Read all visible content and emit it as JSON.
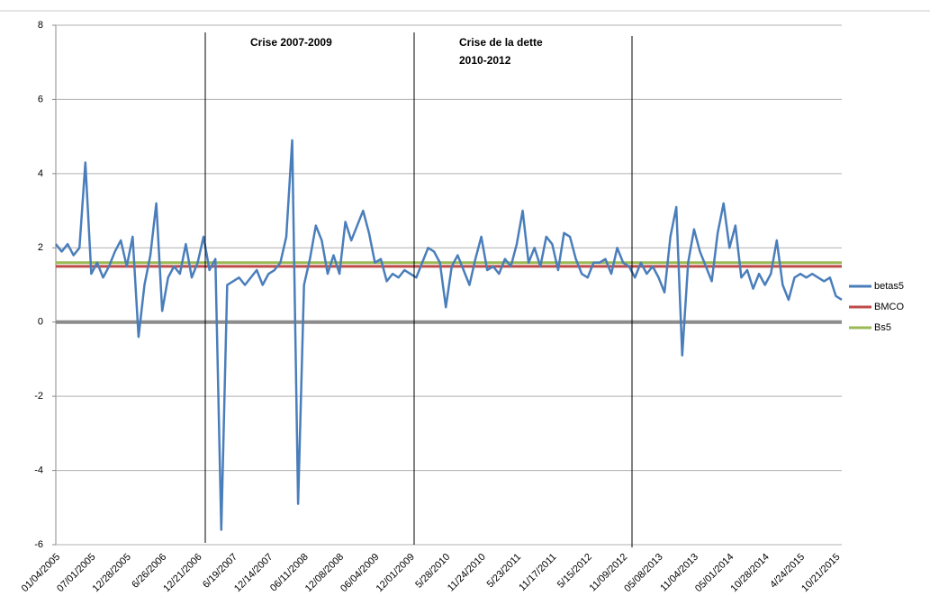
{
  "chart_data": {
    "type": "line",
    "categories": [
      "01/04/2005",
      null,
      null,
      null,
      null,
      null,
      "07/01/2005",
      null,
      null,
      null,
      null,
      null,
      "12/28/2005",
      null,
      null,
      null,
      null,
      null,
      "6/26/2006",
      null,
      null,
      null,
      null,
      null,
      "12/21/2006",
      null,
      null,
      null,
      null,
      null,
      "6/19/2007",
      null,
      null,
      null,
      null,
      null,
      "12/14/2007",
      null,
      null,
      null,
      null,
      null,
      "06/11/2008",
      null,
      null,
      null,
      null,
      null,
      "12/08/2008",
      null,
      null,
      null,
      null,
      null,
      "06/04/2009",
      null,
      null,
      null,
      null,
      null,
      "12/01/2009",
      null,
      null,
      null,
      null,
      null,
      "5/28/2010",
      null,
      null,
      null,
      null,
      null,
      "11/24/2010",
      null,
      null,
      null,
      null,
      null,
      "5/23/2011",
      null,
      null,
      null,
      null,
      null,
      "11/17/2011",
      null,
      null,
      null,
      null,
      null,
      "5/15/2012",
      null,
      null,
      null,
      null,
      null,
      "11/09/2012",
      null,
      null,
      null,
      null,
      null,
      "05/08/2013",
      null,
      null,
      null,
      null,
      null,
      "11/04/2013",
      null,
      null,
      null,
      null,
      null,
      "05/01/2014",
      null,
      null,
      null,
      null,
      null,
      "10/28/2014",
      null,
      null,
      null,
      null,
      null,
      "4/24/2015",
      null,
      null,
      null,
      null,
      null,
      "10/21/2015",
      null
    ],
    "series": [
      {
        "name": "betas5",
        "color": "#4a7ebb",
        "width": 2.5,
        "values": [
          2.1,
          1.9,
          2.1,
          1.8,
          2.0,
          4.3,
          1.3,
          1.6,
          1.2,
          1.5,
          1.9,
          2.2,
          1.5,
          2.3,
          -0.4,
          1.0,
          1.8,
          3.2,
          0.3,
          1.2,
          1.5,
          1.3,
          2.1,
          1.2,
          1.6,
          2.3,
          1.4,
          1.7,
          -5.6,
          1.0,
          1.1,
          1.2,
          1.0,
          1.2,
          1.4,
          1.0,
          1.3,
          1.4,
          1.6,
          2.3,
          4.9,
          -4.9,
          1.0,
          1.7,
          2.6,
          2.2,
          1.3,
          1.8,
          1.3,
          2.7,
          2.2,
          2.6,
          3.0,
          2.4,
          1.6,
          1.7,
          1.1,
          1.3,
          1.2,
          1.4,
          1.3,
          1.2,
          1.6,
          2.0,
          1.9,
          1.6,
          0.4,
          1.5,
          1.8,
          1.4,
          1.0,
          1.7,
          2.3,
          1.4,
          1.5,
          1.3,
          1.7,
          1.5,
          2.1,
          3.0,
          1.6,
          2.0,
          1.5,
          2.3,
          2.1,
          1.4,
          2.4,
          2.3,
          1.7,
          1.3,
          1.2,
          1.6,
          1.6,
          1.7,
          1.3,
          2.0,
          1.6,
          1.5,
          1.2,
          1.6,
          1.3,
          1.5,
          1.2,
          0.8,
          2.3,
          3.1,
          -0.9,
          1.6,
          2.5,
          1.9,
          1.5,
          1.1,
          2.4,
          3.2,
          2.0,
          2.6,
          1.2,
          1.4,
          0.9,
          1.3,
          1.0,
          1.3,
          2.2,
          1.0,
          0.6,
          1.2,
          1.3,
          1.2,
          1.3,
          1.2,
          1.1,
          1.2,
          0.7,
          0.6
        ]
      },
      {
        "name": "BMCO",
        "color": "#be4b48",
        "width": 3,
        "values": [
          1.5,
          1.5,
          1.5,
          1.5,
          1.5,
          1.5,
          1.5,
          1.5,
          1.5,
          1.5,
          1.5,
          1.5,
          1.5,
          1.5,
          1.5,
          1.5,
          1.5,
          1.5,
          1.5,
          1.5,
          1.5,
          1.5,
          1.5,
          1.5,
          1.5,
          1.5,
          1.5,
          1.5,
          1.5,
          1.5,
          1.5,
          1.5,
          1.5,
          1.5,
          1.5,
          1.5,
          1.5,
          1.5,
          1.5,
          1.5,
          1.5,
          1.5,
          1.5,
          1.5,
          1.5,
          1.5,
          1.5,
          1.5,
          1.5,
          1.5,
          1.5,
          1.5,
          1.5,
          1.5,
          1.5,
          1.5,
          1.5,
          1.5,
          1.5,
          1.5,
          1.5,
          1.5,
          1.5,
          1.5,
          1.5,
          1.5,
          1.5,
          1.5,
          1.5,
          1.5,
          1.5,
          1.5,
          1.5,
          1.5,
          1.5,
          1.5,
          1.5,
          1.5,
          1.5,
          1.5,
          1.5,
          1.5,
          1.5,
          1.5,
          1.5,
          1.5,
          1.5,
          1.5,
          1.5,
          1.5,
          1.5,
          1.5,
          1.5,
          1.5,
          1.5,
          1.5,
          1.5,
          1.5,
          1.5,
          1.5,
          1.5,
          1.5,
          1.5,
          1.5,
          1.5,
          1.5,
          1.5,
          1.5,
          1.5,
          1.5,
          1.5,
          1.5,
          1.5,
          1.5,
          1.5,
          1.5,
          1.5,
          1.5,
          1.5,
          1.5,
          1.5,
          1.5,
          1.5,
          1.5,
          1.5,
          1.5,
          1.5,
          1.5,
          1.5,
          1.5,
          1.5,
          1.5,
          1.5,
          1.5
        ]
      },
      {
        "name": "Bs5",
        "color": "#98b954",
        "width": 3,
        "values": [
          1.6,
          1.6,
          1.6,
          1.6,
          1.6,
          1.6,
          1.6,
          1.6,
          1.6,
          1.6,
          1.6,
          1.6,
          1.6,
          1.6,
          1.6,
          1.6,
          1.6,
          1.6,
          1.6,
          1.6,
          1.6,
          1.6,
          1.6,
          1.6,
          1.6,
          1.6,
          1.6,
          1.6,
          1.6,
          1.6,
          1.6,
          1.6,
          1.6,
          1.6,
          1.6,
          1.6,
          1.6,
          1.6,
          1.6,
          1.6,
          1.6,
          1.6,
          1.6,
          1.6,
          1.6,
          1.6,
          1.6,
          1.6,
          1.6,
          1.6,
          1.6,
          1.6,
          1.6,
          1.6,
          1.6,
          1.6,
          1.6,
          1.6,
          1.6,
          1.6,
          1.6,
          1.6,
          1.6,
          1.6,
          1.6,
          1.6,
          1.6,
          1.6,
          1.6,
          1.6,
          1.6,
          1.6,
          1.6,
          1.6,
          1.6,
          1.6,
          1.6,
          1.6,
          1.6,
          1.6,
          1.6,
          1.6,
          1.6,
          1.6,
          1.6,
          1.6,
          1.6,
          1.6,
          1.6,
          1.6,
          1.6,
          1.6,
          1.6,
          1.6,
          1.6,
          1.6,
          1.6,
          1.6,
          1.6,
          1.6,
          1.6,
          1.6,
          1.6,
          1.6,
          1.6,
          1.6,
          1.6,
          1.6,
          1.6,
          1.6,
          1.6,
          1.6,
          1.6,
          1.6,
          1.6,
          1.6,
          1.6,
          1.6,
          1.6,
          1.6,
          1.6,
          1.6,
          1.6,
          1.6,
          1.6,
          1.6,
          1.6,
          1.6,
          1.6,
          1.6,
          1.6,
          1.6,
          1.6,
          1.6
        ]
      }
    ],
    "ylim": [
      -6,
      8
    ],
    "yticks": [
      -6,
      -4,
      -2,
      0,
      2,
      4,
      6,
      8
    ],
    "grid": true,
    "legend": "right",
    "annotations": [
      [
        "Crise 2007-2009"
      ],
      [
        "Crise de la dette",
        "2010-2012"
      ]
    ]
  }
}
